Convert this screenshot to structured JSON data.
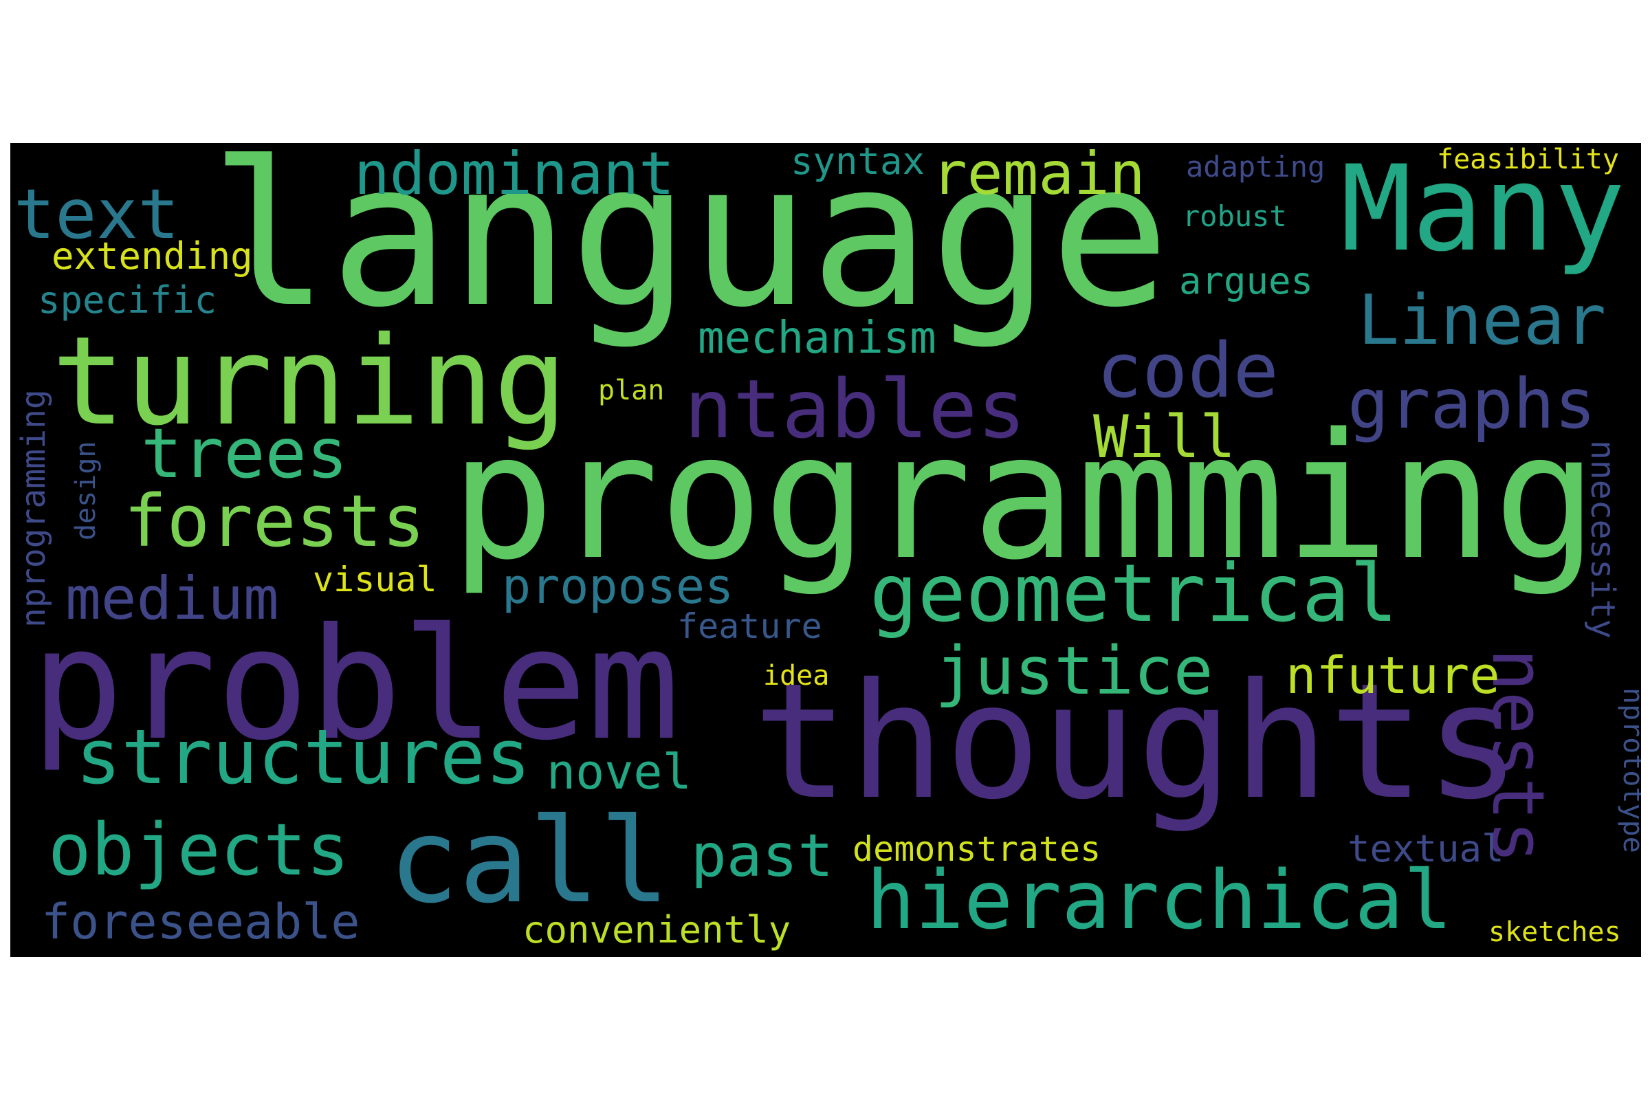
{
  "background_color": "#000000",
  "words": [
    {
      "id": "language",
      "text": "language",
      "color": "#5ec962"
    },
    {
      "id": "programming",
      "text": "programming",
      "color": "#5ec962"
    },
    {
      "id": "thoughts",
      "text": "thoughts",
      "color": "#472d7b"
    },
    {
      "id": "problem",
      "text": "problem",
      "color": "#472d7b"
    },
    {
      "id": "turning",
      "text": "turning",
      "color": "#7ad151"
    },
    {
      "id": "Many",
      "text": "Many",
      "color": "#22a884"
    },
    {
      "id": "call",
      "text": "call",
      "color": "#2a788e"
    },
    {
      "id": "ntables",
      "text": "ntables",
      "color": "#472d7b"
    },
    {
      "id": "hierarchical",
      "text": "hierarchical",
      "color": "#22a884"
    },
    {
      "id": "geometrical",
      "text": "geometrical",
      "color": "#35b779"
    },
    {
      "id": "structures",
      "text": "structures",
      "color": "#22a884"
    },
    {
      "id": "forests",
      "text": "forests",
      "color": "#7ad151"
    },
    {
      "id": "objects",
      "text": "objects",
      "color": "#22a884"
    },
    {
      "id": "code",
      "text": "code",
      "color": "#414487"
    },
    {
      "id": "graphs",
      "text": "graphs",
      "color": "#414487"
    },
    {
      "id": "Linear",
      "text": "Linear",
      "color": "#2a788e"
    },
    {
      "id": "trees",
      "text": "trees",
      "color": "#35b779"
    },
    {
      "id": "text",
      "text": "text",
      "color": "#2a788e"
    },
    {
      "id": "justice",
      "text": "justice",
      "color": "#35b779"
    },
    {
      "id": "nests",
      "text": "nests",
      "color": "#472d7b"
    },
    {
      "id": "ndominant",
      "text": "ndominant",
      "color": "#1f988b"
    },
    {
      "id": "remain",
      "text": "remain",
      "color": "#a5db36"
    },
    {
      "id": "medium",
      "text": "medium",
      "color": "#414487"
    },
    {
      "id": "nfuture",
      "text": "nfuture",
      "color": "#bddf26"
    },
    {
      "id": "past",
      "text": "past",
      "color": "#22a884"
    },
    {
      "id": "will",
      "text": "Will",
      "color": "#a5db36"
    },
    {
      "id": "foreseeable",
      "text": "foreseeable",
      "color": "#3b528b"
    },
    {
      "id": "proposes",
      "text": "proposes",
      "color": "#2a788e"
    },
    {
      "id": "novel",
      "text": "novel",
      "color": "#22a884"
    },
    {
      "id": "mechanism",
      "text": "mechanism",
      "color": "#22a884"
    },
    {
      "id": "conveniently",
      "text": "conveniently",
      "color": "#bddf26"
    },
    {
      "id": "demonstrates",
      "text": "demonstrates",
      "color": "#d2e21b"
    },
    {
      "id": "extending",
      "text": "extending",
      "color": "#d8e219"
    },
    {
      "id": "specific",
      "text": "specific",
      "color": "#25858e"
    },
    {
      "id": "syntax",
      "text": "syntax",
      "color": "#1f988b"
    },
    {
      "id": "argues",
      "text": "argues",
      "color": "#22a884"
    },
    {
      "id": "textual",
      "text": "textual",
      "color": "#3e4a89"
    },
    {
      "id": "visual",
      "text": "visual",
      "color": "#dde318"
    },
    {
      "id": "feature",
      "text": "feature",
      "color": "#38588c"
    },
    {
      "id": "adapting",
      "text": "adapting",
      "color": "#3e4a89"
    },
    {
      "id": "robust",
      "text": "robust",
      "color": "#20a386"
    },
    {
      "id": "feasibility",
      "text": "feasibility",
      "color": "#e5e419"
    },
    {
      "id": "sketches",
      "text": "sketches",
      "color": "#dde318"
    },
    {
      "id": "plan",
      "text": "plan",
      "color": "#c0df25"
    },
    {
      "id": "idea",
      "text": "idea",
      "color": "#e5e419"
    },
    {
      "id": "nprogramming",
      "text": "nprogramming",
      "color": "#3e4a89"
    },
    {
      "id": "design",
      "text": "design",
      "color": "#3b528b"
    },
    {
      "id": "nnecessity",
      "text": "nnecessity",
      "color": "#3e4a89"
    },
    {
      "id": "nprototype",
      "text": "nprototype",
      "color": "#3b528b"
    }
  ]
}
